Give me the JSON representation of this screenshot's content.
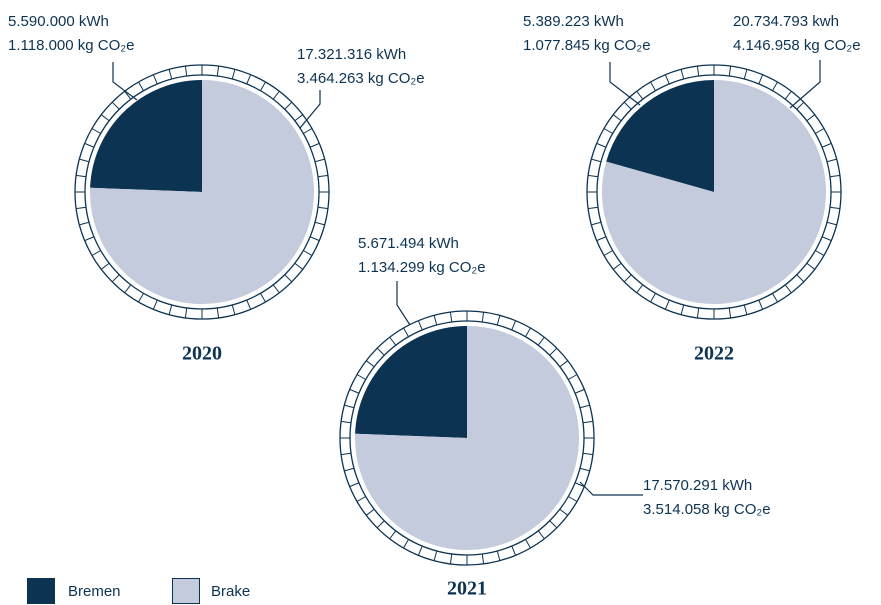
{
  "chart_data": [
    {
      "type": "pie",
      "title": "2020",
      "categories": [
        "Bremen",
        "Brake"
      ],
      "colors": [
        "#0d3352",
        "#c3cbdc"
      ],
      "values": [
        5590000,
        17321316
      ],
      "value_labels": [
        "5.590.000 kWh",
        "17.321.316 kWh"
      ],
      "co2_values": [
        1118000,
        3464263
      ],
      "co2_labels": [
        "1.118.000 kg CO₂e",
        "3.464.263 kg CO₂e"
      ]
    },
    {
      "type": "pie",
      "title": "2021",
      "categories": [
        "Bremen",
        "Brake"
      ],
      "colors": [
        "#0d3352",
        "#c3cbdc"
      ],
      "values": [
        5671494,
        17570291
      ],
      "value_labels": [
        "5.671.494 kWh",
        "17.570.291 kWh"
      ],
      "co2_values": [
        1134299,
        3514058
      ],
      "co2_labels": [
        "1.134.299 kg CO₂e",
        "3.514.058 kg CO₂e"
      ]
    },
    {
      "type": "pie",
      "title": "2022",
      "categories": [
        "Bremen",
        "Brake"
      ],
      "colors": [
        "#0d3352",
        "#c3cbdc"
      ],
      "values": [
        5389223,
        20734793
      ],
      "value_labels": [
        "5.389.223 kWh",
        "20.734.793 kwh"
      ],
      "co2_values": [
        1077845,
        4146958
      ],
      "co2_labels": [
        "1.077.845 kg CO₂e",
        "4.146.958 kg CO₂e"
      ]
    }
  ]
}
